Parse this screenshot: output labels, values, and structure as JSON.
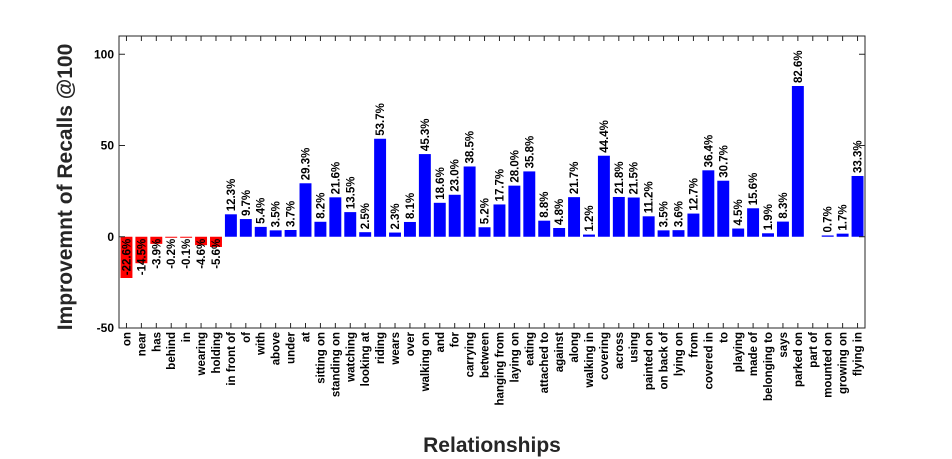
{
  "chart_data": {
    "type": "bar",
    "xlabel": "Relationships",
    "ylabel": "Improvemnt of Recalls @100",
    "ylim": [
      -50,
      110
    ],
    "yticks": [
      -50,
      0,
      50,
      100
    ],
    "grid": false,
    "colors": {
      "negative": "#ff0000",
      "positive": "#0000ff"
    },
    "bar_labels": [
      "-22.6%",
      "-14.5%",
      "-3.9%",
      "-0.2%",
      "-0.1%",
      "-4.6%",
      "-5.6%",
      "12.3%",
      "9.7%",
      "5.4%",
      "3.5%",
      "3.7%",
      "29.3%",
      "8.2%",
      "21.6%",
      "13.5%",
      "2.5%",
      "53.7%",
      "2.3%",
      "8.1%",
      "45.3%",
      "18.6%",
      "23.0%",
      "38.5%",
      "5.2%",
      "17.7%",
      "28.0%",
      "35.8%",
      "8.8%",
      "4.8%",
      "21.7%",
      "1.2%",
      "44.4%",
      "21.8%",
      "21.5%",
      "11.2%",
      "3.5%",
      "3.6%",
      "12.7%",
      "36.4%",
      "30.7%",
      "4.5%",
      "15.6%",
      "1.9%",
      "8.3%",
      "82.6%",
      "",
      "0.7%",
      "1.7%",
      "33.3%"
    ],
    "categories": [
      "on",
      "near",
      "has",
      "behind",
      "in",
      "wearing",
      "holding",
      "in front of",
      "of",
      "with",
      "above",
      "under",
      "at",
      "sitting on",
      "standing on",
      "watching",
      "looking at",
      "riding",
      "wears",
      "over",
      "walking on",
      "and",
      "for",
      "carrying",
      "between",
      "hanging from",
      "laying on",
      "eating",
      "attached to",
      "against",
      "along",
      "walking in",
      "covering",
      "across",
      "using",
      "painted on",
      "on back of",
      "lying on",
      "from",
      "covered in",
      "to",
      "playing",
      "made of",
      "belonging to",
      "says",
      "parked on",
      "part of",
      "mounted on",
      "growing on",
      "flying in"
    ],
    "values": [
      -22.6,
      -14.5,
      -3.9,
      -0.2,
      -0.1,
      -4.6,
      -5.6,
      12.3,
      9.7,
      5.4,
      3.5,
      3.7,
      29.3,
      8.2,
      21.6,
      13.5,
      2.5,
      53.7,
      2.3,
      8.1,
      45.3,
      18.6,
      23.0,
      38.5,
      5.2,
      17.7,
      28.0,
      35.8,
      8.8,
      4.8,
      21.7,
      1.2,
      44.4,
      21.8,
      21.5,
      11.2,
      3.5,
      3.6,
      12.7,
      36.4,
      30.7,
      4.5,
      15.6,
      1.9,
      8.3,
      82.6,
      0.0,
      0.7,
      1.7,
      33.3
    ]
  }
}
